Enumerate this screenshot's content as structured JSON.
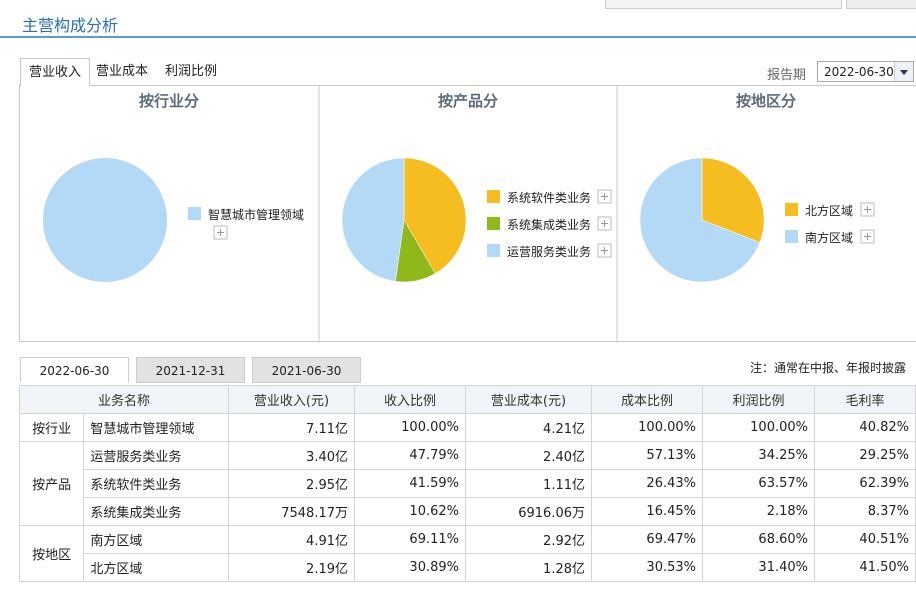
{
  "header": {
    "title": "主营构成分析"
  },
  "tabs": [
    "营业收入",
    "营业成本",
    "利润比例"
  ],
  "report_period_label": "报告期",
  "report_period": "2022-06-30",
  "pies": [
    {
      "title": "按行业分",
      "items": [
        {
          "name": "智慧城市管理领域",
          "color": "#b3d9f7",
          "value": 100
        }
      ]
    },
    {
      "title": "按产品分",
      "items": [
        {
          "name": "系统软件类业务",
          "color": "#f5bd1f",
          "value": 41.59
        },
        {
          "name": "系统集成类业务",
          "color": "#8fb81b",
          "value": 10.62
        },
        {
          "name": "运营服务类业务",
          "color": "#b3d9f7",
          "value": 47.79
        }
      ]
    },
    {
      "title": "按地区分",
      "items": [
        {
          "name": "北方区域",
          "color": "#f5bd1f",
          "value": 30.89
        },
        {
          "name": "南方区域",
          "color": "#b3d9f7",
          "value": 69.11
        }
      ]
    }
  ],
  "date_tabs": [
    "2022-06-30",
    "2021-12-31",
    "2021-06-30"
  ],
  "note": "注：通常在中报、年报时披露",
  "table": {
    "columns": [
      "业务名称",
      "营业收入(元)",
      "收入比例",
      "营业成本(元)",
      "成本比例",
      "利润比例",
      "毛利率"
    ],
    "groups": [
      {
        "group": "按行业",
        "rows": [
          [
            "智慧城市管理领域",
            "7.11亿",
            "100.00%",
            "4.21亿",
            "100.00%",
            "100.00%",
            "40.82%"
          ]
        ]
      },
      {
        "group": "按产品",
        "rows": [
          [
            "运营服务类业务",
            "3.40亿",
            "47.79%",
            "2.40亿",
            "57.13%",
            "34.25%",
            "29.25%"
          ],
          [
            "系统软件类业务",
            "2.95亿",
            "41.59%",
            "1.11亿",
            "26.43%",
            "63.57%",
            "62.39%"
          ],
          [
            "系统集成类业务",
            "7548.17万",
            "10.62%",
            "6916.06万",
            "16.45%",
            "2.18%",
            "8.37%"
          ]
        ]
      },
      {
        "group": "按地区",
        "rows": [
          [
            "南方区域",
            "4.91亿",
            "69.11%",
            "2.92亿",
            "69.47%",
            "68.60%",
            "40.51%"
          ],
          [
            "北方区域",
            "2.19亿",
            "30.89%",
            "1.28亿",
            "30.53%",
            "31.40%",
            "41.50%"
          ]
        ]
      }
    ]
  }
}
